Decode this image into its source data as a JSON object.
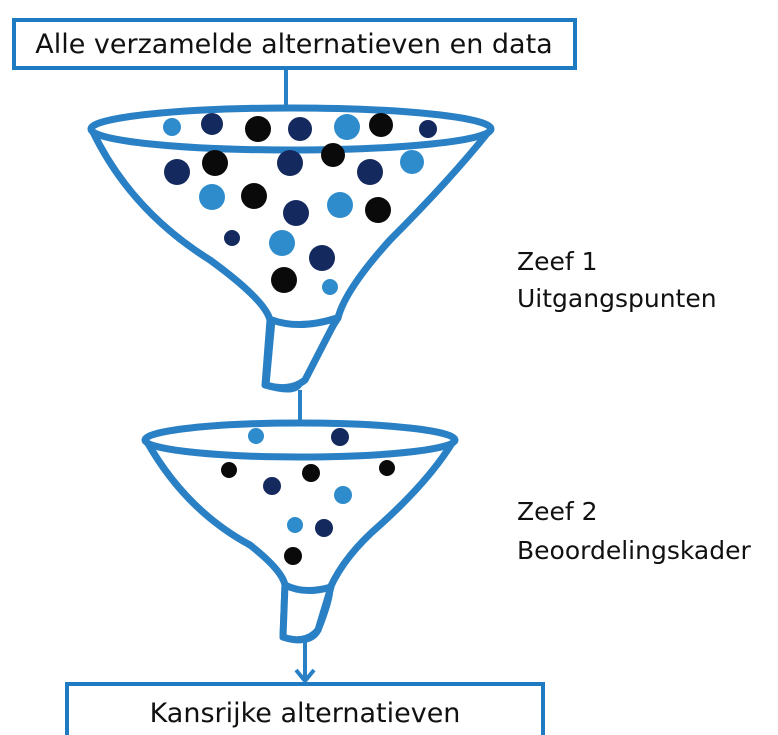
{
  "top_box": {
    "text": "Alle verzamelde alternatieven en data"
  },
  "sieves": [
    {
      "name": "Zeef 1",
      "label": "Uitgangspunten"
    },
    {
      "name": "Zeef 2",
      "label": "Beoordelingskader"
    }
  ],
  "bottom_box": {
    "text": "Kansrijke alternatieven"
  }
}
